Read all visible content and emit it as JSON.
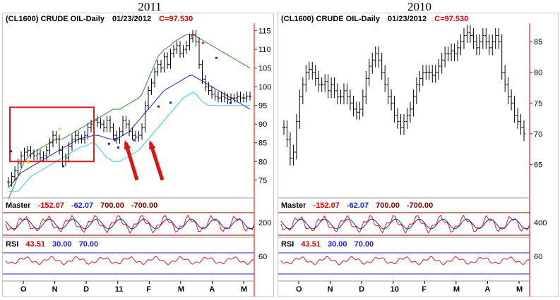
{
  "chart_data": [
    {
      "type": "candlestick",
      "title": "2011",
      "header": {
        "symbol": "(CL1600) CRUDE OIL-Daily",
        "date": "01/23/2012",
        "close": "C=97.530"
      },
      "x_ticks": [
        "O",
        "N",
        "D",
        "11",
        "F",
        "M",
        "A",
        "M"
      ],
      "y_ticks": [
        75,
        80,
        85,
        90,
        95,
        100,
        105,
        110,
        115
      ],
      "ylim": [
        71,
        117
      ],
      "price_x": [
        0,
        3,
        6,
        9,
        12,
        15,
        18,
        21,
        24,
        27,
        30,
        33,
        36,
        39,
        42,
        45,
        48,
        51,
        54,
        57,
        60,
        63,
        66,
        69,
        72,
        75,
        78,
        81,
        84,
        87,
        90,
        93,
        96,
        99,
        102,
        105,
        108,
        111,
        114,
        117,
        120,
        123,
        126,
        129,
        132,
        135,
        138,
        141,
        144,
        147,
        150,
        153,
        156,
        159,
        162,
        165,
        168,
        171,
        174,
        177,
        180,
        183,
        186,
        189,
        192,
        195,
        198,
        201,
        204,
        207,
        210,
        213,
        216,
        219,
        222,
        225,
        228
      ],
      "price_close": [
        74.5,
        76,
        77.5,
        79.5,
        81.5,
        82.5,
        83,
        82,
        81.5,
        82,
        81,
        81.5,
        83,
        85,
        87,
        86,
        83,
        80,
        81,
        84,
        86,
        87,
        86,
        86,
        87,
        89,
        90,
        91,
        90.5,
        90,
        89,
        91,
        89,
        87,
        86,
        88,
        91,
        90,
        88,
        87,
        86.5,
        87,
        89,
        95,
        99,
        101,
        104,
        106,
        105,
        108,
        106,
        109,
        110,
        111,
        109,
        110,
        111,
        113,
        114,
        112,
        106,
        102,
        100,
        99,
        98,
        97.5,
        97,
        97.5,
        97,
        96.5,
        97,
        97,
        97.5,
        97,
        97,
        97.5,
        97.5
      ],
      "overlay_lines": [
        {
          "color": "#2a8a2a",
          "values": [
            70,
            72,
            74,
            76,
            78,
            80,
            81,
            82,
            82.5,
            83,
            83.5,
            84,
            84.5,
            85,
            85.5,
            86,
            86,
            86,
            86.5,
            87,
            87.5,
            88,
            88.5,
            89,
            89.5,
            90,
            90.5,
            91,
            91.5,
            92,
            92.5,
            93,
            93.5,
            94,
            94,
            94,
            94.5,
            95,
            95.5,
            96,
            96.5,
            97,
            98,
            100,
            102,
            104,
            106,
            108,
            109,
            110,
            110.5,
            111,
            112,
            112.5,
            113,
            113.5,
            114,
            114,
            114,
            113.5,
            113,
            112.5,
            112,
            111.5,
            111,
            110.5,
            110,
            109.5,
            109,
            108.5,
            108,
            107.5,
            107,
            106.5,
            106,
            105.5,
            105
          ]
        },
        {
          "color": "#2222cc",
          "values": [
            73,
            74,
            75,
            76,
            77,
            77.5,
            78,
            78.5,
            79,
            79.5,
            80,
            80.5,
            81,
            81.5,
            82,
            82.5,
            83,
            83.5,
            84,
            84.5,
            85,
            85.5,
            86,
            86.2,
            86.4,
            86.6,
            86.8,
            87,
            87,
            86.8,
            86.5,
            86.2,
            86,
            86,
            86.2,
            86.5,
            87,
            87.5,
            88,
            89,
            90,
            91,
            92,
            93,
            94,
            95,
            96,
            97,
            98,
            99,
            99.5,
            100,
            100.5,
            101,
            101.5,
            102,
            102.5,
            103,
            103,
            102.5,
            102,
            101.5,
            101,
            100.5,
            100,
            99.5,
            99,
            98.5,
            98,
            97.5,
            97,
            96.5,
            96,
            95.5,
            95,
            94.5,
            94
          ]
        },
        {
          "color": "#38c8e8",
          "values": [
            72,
            72,
            72,
            72,
            73,
            74,
            75,
            76,
            76.5,
            77,
            77.5,
            78,
            78.5,
            79,
            79.5,
            80,
            80.5,
            81,
            81.5,
            82,
            82.5,
            83,
            83.5,
            84,
            84,
            84.5,
            85,
            85,
            84,
            83,
            82,
            81,
            80.5,
            80,
            80,
            80,
            80.5,
            81,
            81.5,
            82,
            82.5,
            83,
            84,
            85,
            86,
            87,
            88,
            89,
            90,
            91,
            92,
            93,
            94,
            95,
            96,
            97,
            97.5,
            98,
            98.5,
            98,
            97,
            96,
            95.5,
            95,
            95,
            95,
            95,
            95,
            95,
            95,
            95,
            95,
            95,
            95,
            95,
            95,
            95
          ]
        }
      ],
      "markers": [
        {
          "x": 6,
          "y": 83,
          "color": "#2222cc"
        },
        {
          "x": 30,
          "y": 80,
          "color": "#e0e000"
        },
        {
          "x": 75,
          "y": 89,
          "color": "#e0e000"
        },
        {
          "x": 80,
          "y": 79,
          "color": "#2222cc"
        },
        {
          "x": 145,
          "y": 85,
          "color": "#2222cc"
        },
        {
          "x": 153,
          "y": 86,
          "color": "#2222cc"
        },
        {
          "x": 158,
          "y": 84,
          "color": "#2222cc"
        },
        {
          "x": 180,
          "y": 86,
          "color": "#9922cc"
        },
        {
          "x": 215,
          "y": 95,
          "color": "#2222cc"
        },
        {
          "x": 232,
          "y": 96,
          "color": "#2222cc"
        },
        {
          "x": 262,
          "y": 114,
          "color": "#e03030"
        },
        {
          "x": 278,
          "y": 112,
          "color": "#e03030"
        },
        {
          "x": 297,
          "y": 108,
          "color": "#2222cc"
        },
        {
          "x": 317,
          "y": 96,
          "color": "#2222cc"
        }
      ],
      "highlight_box": {
        "x0": 6,
        "x1": 125,
        "y_low": 80,
        "y_high": 94.5
      },
      "arrows": [
        {
          "from": [
            186,
            75
          ],
          "to": [
            170,
            85
          ]
        },
        {
          "from": [
            222,
            75
          ],
          "to": [
            205,
            85
          ]
        }
      ],
      "master": {
        "labels": [
          "-152.07",
          "-62.07",
          "700.00",
          "-700.00"
        ],
        "axis_label": "200"
      },
      "rsi": {
        "labels": [
          "43.51",
          "30.00",
          "70.00"
        ],
        "axis_label": "60"
      }
    },
    {
      "type": "candlestick",
      "title": "2010",
      "header": {
        "symbol": "(CL1600) CRUDE OIL-Daily",
        "date": "01/23/2012",
        "close": "C=97.530"
      },
      "x_ticks": [
        "O",
        "N",
        "D",
        "10",
        "F",
        "M",
        "A",
        "M"
      ],
      "y_ticks": [
        65,
        70,
        75,
        80,
        85
      ],
      "ylim": [
        60,
        88
      ],
      "price_close": [
        71,
        69,
        66,
        67,
        72,
        76,
        78,
        80,
        80.5,
        80,
        79,
        78,
        78,
        78.5,
        77,
        78,
        77,
        76,
        76,
        77,
        76,
        75,
        74,
        73.5,
        74,
        76,
        79,
        81,
        82,
        83,
        82,
        80,
        78,
        76,
        75,
        73,
        72,
        71,
        72,
        73,
        74,
        76,
        78,
        79,
        80,
        80,
        80,
        79.5,
        80,
        81,
        82,
        83,
        83,
        83.5,
        83,
        84,
        85,
        86,
        86.5,
        86,
        85,
        84,
        85,
        86,
        85,
        84,
        85,
        86,
        85,
        80,
        78,
        76,
        75,
        73,
        72,
        71,
        70
      ]
    }
  ]
}
